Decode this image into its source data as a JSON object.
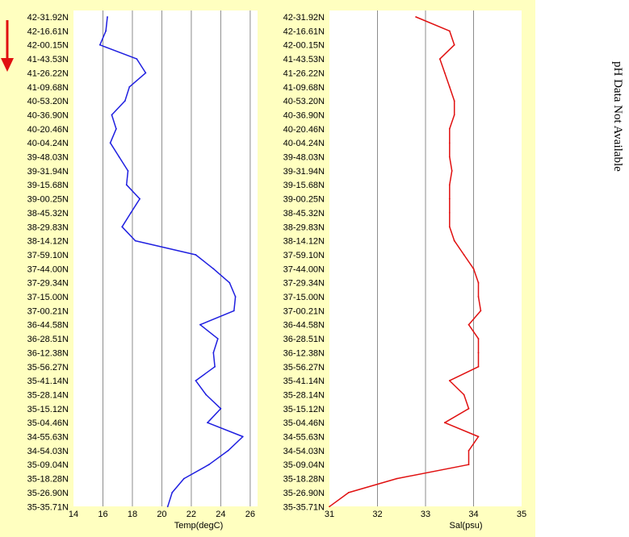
{
  "chart_data": [
    {
      "type": "line",
      "xlabel": "Temp(degC)",
      "ylabel": "",
      "xlim": [
        14,
        26.5
      ],
      "xticks": [
        14,
        16,
        18,
        20,
        22,
        24,
        26
      ],
      "y_categories": [
        "42-31.92N",
        "42-16.61N",
        "42-00.15N",
        "41-43.53N",
        "41-26.22N",
        "41-09.68N",
        "40-53.20N",
        "40-36.90N",
        "40-20.46N",
        "40-04.24N",
        "39-48.03N",
        "39-31.94N",
        "39-15.68N",
        "39-00.25N",
        "38-45.32N",
        "38-29.83N",
        "38-14.12N",
        "37-59.10N",
        "37-44.00N",
        "37-29.34N",
        "37-15.00N",
        "37-00.21N",
        "36-44.58N",
        "36-28.51N",
        "36-12.38N",
        "35-56.27N",
        "35-41.14N",
        "35-28.14N",
        "35-15.12N",
        "35-04.46N",
        "34-55.63N",
        "34-54.03N",
        "35-09.04N",
        "35-18.28N",
        "35-26.90N",
        "35-35.71N"
      ],
      "series": [
        {
          "color": "#1f1fe0",
          "values": [
            16.3,
            16.2,
            15.8,
            18.3,
            18.9,
            17.8,
            17.5,
            16.6,
            16.9,
            16.5,
            17.1,
            17.7,
            17.6,
            18.5,
            17.9,
            17.3,
            18.2,
            22.3,
            23.5,
            24.6,
            25.0,
            24.9,
            22.6,
            23.8,
            23.5,
            23.6,
            22.3,
            23.0,
            24.0,
            23.1,
            25.5,
            24.5,
            23.2,
            21.5,
            20.7,
            20.4
          ]
        }
      ]
    },
    {
      "type": "line",
      "xlabel": "Sal(psu)",
      "ylabel": "",
      "xlim": [
        31,
        35
      ],
      "xticks": [
        31,
        32,
        33,
        34,
        35
      ],
      "y_categories": [
        "42-31.92N",
        "42-16.61N",
        "42-00.15N",
        "41-43.53N",
        "41-26.22N",
        "41-09.68N",
        "40-53.20N",
        "40-36.90N",
        "40-20.46N",
        "40-04.24N",
        "39-48.03N",
        "39-31.94N",
        "39-15.68N",
        "39-00.25N",
        "38-45.32N",
        "38-29.83N",
        "38-14.12N",
        "37-59.10N",
        "37-44.00N",
        "37-29.34N",
        "37-15.00N",
        "37-00.21N",
        "36-44.58N",
        "36-28.51N",
        "36-12.38N",
        "35-56.27N",
        "35-41.14N",
        "35-28.14N",
        "35-15.12N",
        "35-04.46N",
        "34-55.63N",
        "34-54.03N",
        "35-09.04N",
        "35-18.28N",
        "35-26.90N",
        "35-35.71N"
      ],
      "series": [
        {
          "color": "#e01010",
          "values": [
            32.8,
            33.5,
            33.6,
            33.3,
            33.4,
            33.5,
            33.6,
            33.6,
            33.5,
            33.5,
            33.5,
            33.55,
            33.5,
            33.5,
            33.5,
            33.5,
            33.6,
            33.8,
            34.0,
            34.1,
            34.1,
            34.15,
            33.9,
            34.1,
            34.1,
            34.1,
            33.5,
            33.8,
            33.9,
            33.4,
            34.1,
            33.9,
            33.9,
            32.4,
            31.4,
            31.0
          ]
        }
      ]
    }
  ],
  "side_note": "pH Data Not Available",
  "direction_arrow_color": "#e01010"
}
